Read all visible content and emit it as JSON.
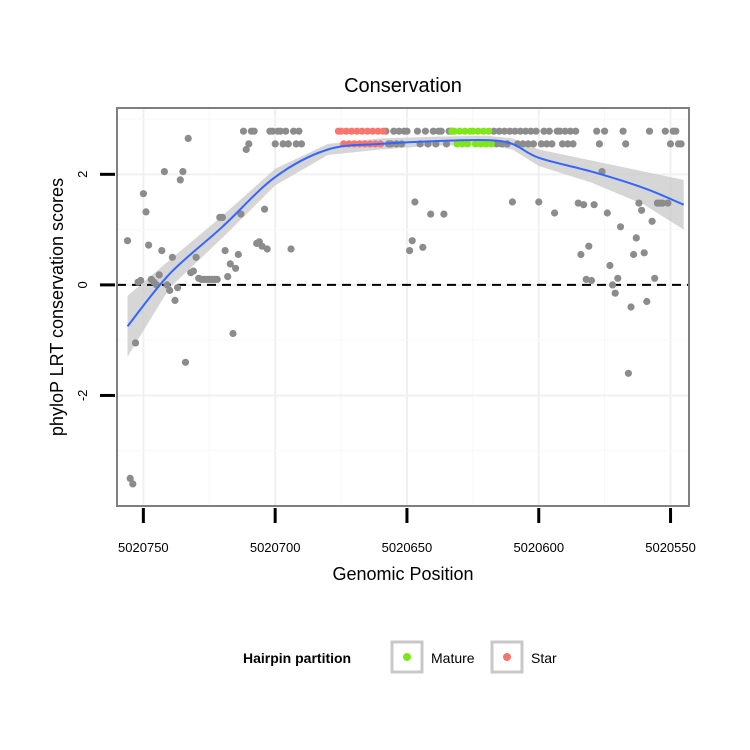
{
  "chart_data": {
    "type": "scatter",
    "title": "Conservation",
    "xlabel": "Genomic Position",
    "ylabel": "phyloP LRT conservation scores",
    "x_reversed": true,
    "xlim": [
      5020760,
      5020543
    ],
    "ylim": [
      -4.0,
      3.2
    ],
    "x_ticks": [
      5020750,
      5020700,
      5020650,
      5020600,
      5020550
    ],
    "x_tick_labels": [
      "5020750",
      "5020700",
      "5020650",
      "5020600",
      "5020550"
    ],
    "y_ticks": [
      -2,
      0,
      2
    ],
    "y_tick_labels": [
      "-2",
      "0",
      "2"
    ],
    "reference_line": {
      "y": 0,
      "style": "dashed",
      "color": "#000000"
    },
    "grid": true,
    "legend": {
      "title": "Hairpin partition",
      "placement": "bottom",
      "entries": [
        {
          "label": "Mature",
          "color": "#7fe61a"
        },
        {
          "label": "Star",
          "color": "#f8766d"
        }
      ]
    },
    "colors": {
      "other_points": "#8c8c8c",
      "smooth_line": "#3366ff",
      "ci_band": "#cccccc",
      "panel_border": "#7f7f7f"
    },
    "series": [
      {
        "color": "#8c8c8c",
        "points": [
          [
            5020756,
            0.8
          ],
          [
            5020755,
            -3.5
          ],
          [
            5020754,
            -3.6
          ],
          [
            5020753,
            -1.05
          ],
          [
            5020752,
            0.05
          ],
          [
            5020751,
            0.08
          ],
          [
            5020750,
            1.65
          ],
          [
            5020749,
            1.32
          ],
          [
            5020748,
            0.72
          ],
          [
            5020747,
            0.1
          ],
          [
            5020746,
            0.05
          ],
          [
            5020745,
            0.0
          ],
          [
            5020744,
            0.18
          ],
          [
            5020743,
            0.62
          ],
          [
            5020742,
            2.05
          ],
          [
            5020741,
            0.0
          ],
          [
            5020740,
            -0.1
          ],
          [
            5020739,
            0.5
          ],
          [
            5020738,
            -0.28
          ],
          [
            5020737,
            -0.05
          ],
          [
            5020736,
            1.9
          ],
          [
            5020735,
            2.05
          ],
          [
            5020734,
            -1.4
          ],
          [
            5020733,
            2.65
          ],
          [
            5020732,
            0.22
          ],
          [
            5020731,
            0.25
          ],
          [
            5020730,
            0.5
          ],
          [
            5020729,
            0.12
          ],
          [
            5020728,
            0.1
          ],
          [
            5020727,
            0.1
          ],
          [
            5020726,
            0.1
          ],
          [
            5020725,
            0.1
          ],
          [
            5020724,
            0.1
          ],
          [
            5020723,
            0.1
          ],
          [
            5020722,
            0.1
          ],
          [
            5020721,
            1.22
          ],
          [
            5020720,
            1.22
          ],
          [
            5020719,
            0.62
          ],
          [
            5020718,
            0.15
          ],
          [
            5020717,
            0.38
          ],
          [
            5020716,
            -0.88
          ],
          [
            5020715,
            0.3
          ],
          [
            5020714,
            0.55
          ],
          [
            5020713,
            1.28
          ],
          [
            5020712,
            2.78
          ],
          [
            5020711,
            2.45
          ],
          [
            5020710,
            2.55
          ],
          [
            5020709,
            2.78
          ],
          [
            5020708,
            2.78
          ],
          [
            5020707,
            0.75
          ],
          [
            5020706,
            0.78
          ],
          [
            5020705,
            0.7
          ],
          [
            5020704,
            1.37
          ],
          [
            5020703,
            0.65
          ],
          [
            5020702,
            2.78
          ],
          [
            5020701,
            2.78
          ],
          [
            5020700,
            2.55
          ],
          [
            5020699,
            2.78
          ],
          [
            5020698,
            2.78
          ],
          [
            5020697,
            2.55
          ],
          [
            5020696,
            2.78
          ],
          [
            5020695,
            2.55
          ],
          [
            5020694,
            0.65
          ],
          [
            5020693,
            2.78
          ],
          [
            5020692,
            2.55
          ],
          [
            5020691,
            2.78
          ],
          [
            5020690,
            2.55
          ],
          [
            5020658,
            2.78
          ],
          [
            5020657,
            2.55
          ],
          [
            5020656,
            2.55
          ],
          [
            5020655,
            2.78
          ],
          [
            5020654,
            2.55
          ],
          [
            5020653,
            2.78
          ],
          [
            5020652,
            2.55
          ],
          [
            5020651,
            2.78
          ],
          [
            5020650,
            2.78
          ],
          [
            5020649,
            0.62
          ],
          [
            5020648,
            0.8
          ],
          [
            5020647,
            1.5
          ],
          [
            5020646,
            2.78
          ],
          [
            5020645,
            2.55
          ],
          [
            5020644,
            0.68
          ],
          [
            5020643,
            2.78
          ],
          [
            5020642,
            2.55
          ],
          [
            5020641,
            1.28
          ],
          [
            5020640,
            2.78
          ],
          [
            5020639,
            2.55
          ],
          [
            5020638,
            2.78
          ],
          [
            5020637,
            2.78
          ],
          [
            5020636,
            1.28
          ],
          [
            5020635,
            2.55
          ],
          [
            5020634,
            2.78
          ],
          [
            5020633,
            2.78
          ],
          [
            5020617,
            2.78
          ],
          [
            5020616,
            2.55
          ],
          [
            5020615,
            2.78
          ],
          [
            5020614,
            2.55
          ],
          [
            5020613,
            2.78
          ],
          [
            5020612,
            2.55
          ],
          [
            5020611,
            2.78
          ],
          [
            5020610,
            1.5
          ],
          [
            5020609,
            2.78
          ],
          [
            5020608,
            2.55
          ],
          [
            5020607,
            2.78
          ],
          [
            5020606,
            2.55
          ],
          [
            5020605,
            2.78
          ],
          [
            5020604,
            2.55
          ],
          [
            5020603,
            2.78
          ],
          [
            5020602,
            2.55
          ],
          [
            5020601,
            2.78
          ],
          [
            5020600,
            1.5
          ],
          [
            5020599,
            2.55
          ],
          [
            5020598,
            2.78
          ],
          [
            5020597,
            2.55
          ],
          [
            5020596,
            2.78
          ],
          [
            5020595,
            2.55
          ],
          [
            5020594,
            1.3
          ],
          [
            5020593,
            2.78
          ],
          [
            5020592,
            2.78
          ],
          [
            5020591,
            2.55
          ],
          [
            5020590,
            2.78
          ],
          [
            5020589,
            2.55
          ],
          [
            5020588,
            2.78
          ],
          [
            5020587,
            2.55
          ],
          [
            5020586,
            2.78
          ],
          [
            5020585,
            1.48
          ],
          [
            5020584,
            0.55
          ],
          [
            5020583,
            1.45
          ],
          [
            5020582,
            0.1
          ],
          [
            5020581,
            0.7
          ],
          [
            5020580,
            0.08
          ],
          [
            5020579,
            1.45
          ],
          [
            5020578,
            2.78
          ],
          [
            5020577,
            2.55
          ],
          [
            5020576,
            2.05
          ],
          [
            5020575,
            2.78
          ],
          [
            5020574,
            1.3
          ],
          [
            5020573,
            0.35
          ],
          [
            5020572,
            0.0
          ],
          [
            5020571,
            -0.15
          ],
          [
            5020570,
            0.12
          ],
          [
            5020569,
            1.05
          ],
          [
            5020568,
            2.78
          ],
          [
            5020567,
            2.55
          ],
          [
            5020566,
            -1.6
          ],
          [
            5020565,
            -0.4
          ],
          [
            5020564,
            0.55
          ],
          [
            5020563,
            0.85
          ],
          [
            5020562,
            1.48
          ],
          [
            5020561,
            1.35
          ],
          [
            5020560,
            0.58
          ],
          [
            5020559,
            -0.3
          ],
          [
            5020558,
            2.78
          ],
          [
            5020557,
            1.15
          ],
          [
            5020556,
            0.12
          ],
          [
            5020555,
            1.48
          ],
          [
            5020554,
            1.48
          ],
          [
            5020553,
            1.48
          ],
          [
            5020552,
            2.78
          ],
          [
            5020551,
            1.48
          ],
          [
            5020550,
            2.55
          ],
          [
            5020549,
            2.78
          ],
          [
            5020548,
            2.78
          ],
          [
            5020547,
            2.55
          ],
          [
            5020546,
            2.55
          ]
        ]
      },
      {
        "name": "Mature",
        "color": "#7fe61a",
        "points": [
          [
            5020633,
            2.78
          ],
          [
            5020632,
            2.78
          ],
          [
            5020631,
            2.55
          ],
          [
            5020630,
            2.78
          ],
          [
            5020629,
            2.55
          ],
          [
            5020628,
            2.78
          ],
          [
            5020627,
            2.55
          ],
          [
            5020626,
            2.78
          ],
          [
            5020625,
            2.78
          ],
          [
            5020624,
            2.55
          ],
          [
            5020623,
            2.78
          ],
          [
            5020622,
            2.55
          ],
          [
            5020621,
            2.78
          ],
          [
            5020620,
            2.55
          ],
          [
            5020619,
            2.78
          ],
          [
            5020618,
            2.55
          ]
        ]
      },
      {
        "name": "Star",
        "color": "#f8766d",
        "points": [
          [
            5020676,
            2.78
          ],
          [
            5020675,
            2.78
          ],
          [
            5020674,
            2.55
          ],
          [
            5020673,
            2.78
          ],
          [
            5020672,
            2.55
          ],
          [
            5020671,
            2.78
          ],
          [
            5020670,
            2.55
          ],
          [
            5020669,
            2.78
          ],
          [
            5020668,
            2.55
          ],
          [
            5020667,
            2.78
          ],
          [
            5020666,
            2.55
          ],
          [
            5020665,
            2.78
          ],
          [
            5020664,
            2.55
          ],
          [
            5020663,
            2.78
          ],
          [
            5020662,
            2.55
          ],
          [
            5020661,
            2.78
          ],
          [
            5020660,
            2.55
          ],
          [
            5020659,
            2.78
          ]
        ]
      }
    ],
    "smooth_fit": {
      "points": [
        [
          5020756,
          -0.75
        ],
        [
          5020740,
          0.2
        ],
        [
          5020720,
          1.05
        ],
        [
          5020700,
          1.95
        ],
        [
          5020680,
          2.45
        ],
        [
          5020660,
          2.55
        ],
        [
          5020640,
          2.6
        ],
        [
          5020620,
          2.62
        ],
        [
          5020610,
          2.55
        ],
        [
          5020600,
          2.3
        ],
        [
          5020580,
          2.05
        ],
        [
          5020560,
          1.75
        ],
        [
          5020545,
          1.45
        ]
      ],
      "ci_low": [
        [
          5020756,
          -1.3
        ],
        [
          5020740,
          -0.05
        ],
        [
          5020720,
          0.85
        ],
        [
          5020700,
          1.8
        ],
        [
          5020680,
          2.35
        ],
        [
          5020660,
          2.45
        ],
        [
          5020640,
          2.52
        ],
        [
          5020620,
          2.54
        ],
        [
          5020610,
          2.45
        ],
        [
          5020600,
          2.15
        ],
        [
          5020580,
          1.85
        ],
        [
          5020560,
          1.45
        ],
        [
          5020545,
          1.0
        ]
      ],
      "ci_high": [
        [
          5020756,
          -0.2
        ],
        [
          5020740,
          0.45
        ],
        [
          5020720,
          1.25
        ],
        [
          5020700,
          2.1
        ],
        [
          5020680,
          2.55
        ],
        [
          5020660,
          2.65
        ],
        [
          5020640,
          2.68
        ],
        [
          5020620,
          2.7
        ],
        [
          5020610,
          2.65
        ],
        [
          5020600,
          2.45
        ],
        [
          5020580,
          2.25
        ],
        [
          5020560,
          2.05
        ],
        [
          5020545,
          1.9
        ]
      ]
    }
  }
}
